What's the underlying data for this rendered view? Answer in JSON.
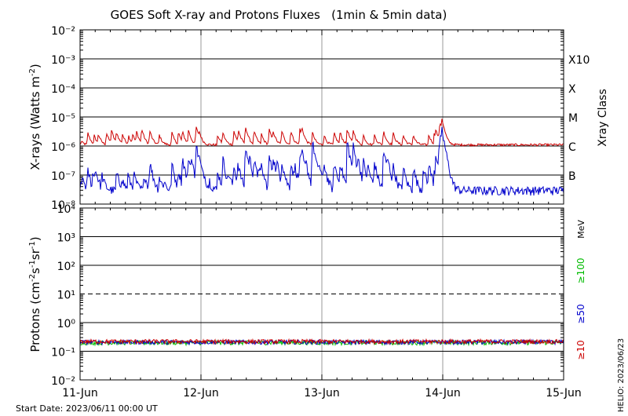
{
  "chart_data": [
    {
      "type": "line",
      "title": "GOES Soft X-ray and Protons Fluxes   (1min & 5min data)",
      "ylabel": "X-rays (Watts m^-2)",
      "right_label": "Xray Class",
      "y_scale": "log",
      "ylim": [
        1e-08,
        0.01
      ],
      "ytick_labels": [
        "10⁻⁸",
        "10⁻⁷",
        "10⁻⁶",
        "10⁻⁵",
        "10⁻⁴",
        "10⁻³",
        "10⁻²"
      ],
      "class_labels": [
        "B",
        "C",
        "M",
        "X",
        "X10"
      ],
      "class_thresholds": [
        1e-07,
        1e-06,
        1e-05,
        0.0001,
        0.001
      ],
      "grid": true,
      "series": [
        {
          "key": "long",
          "color": "#cc0000",
          "baseline": 1.1e-06,
          "peaks": [
            [
              0.2,
              1.5e-06
            ],
            [
              1.5,
              3e-06
            ],
            [
              2.8,
              2.2e-06
            ],
            [
              3.6,
              2.5e-06
            ],
            [
              5.2,
              3e-06
            ],
            [
              6.2,
              3.5e-06
            ],
            [
              7.2,
              3e-06
            ],
            [
              8.4,
              2.5e-06
            ],
            [
              9.6,
              2.3e-06
            ],
            [
              10.4,
              2.5e-06
            ],
            [
              11.2,
              3e-06
            ],
            [
              12.2,
              4e-06
            ],
            [
              13.8,
              3.5e-06
            ],
            [
              15.7,
              2.5e-06
            ],
            [
              18.2,
              3e-06
            ],
            [
              19.5,
              3e-06
            ],
            [
              20.3,
              3e-06
            ],
            [
              21.5,
              3.5e-06
            ],
            [
              23.0,
              5e-06
            ],
            [
              23.6,
              2.5e-06
            ],
            [
              27.3,
              2.5e-06
            ],
            [
              28.3,
              3e-06
            ],
            [
              30.5,
              3.5e-06
            ],
            [
              31.4,
              3.5e-06
            ],
            [
              32.8,
              5e-06
            ],
            [
              34.5,
              3.5e-06
            ],
            [
              36.0,
              2.5e-06
            ],
            [
              37.5,
              4e-06
            ],
            [
              38.3,
              3e-06
            ],
            [
              40.0,
              3.5e-06
            ],
            [
              41.8,
              3.5e-06
            ],
            [
              43.6,
              4e-06
            ],
            [
              44.0,
              3.5e-06
            ],
            [
              46.1,
              3e-06
            ],
            [
              48.4,
              2.5e-06
            ],
            [
              50.4,
              3e-06
            ],
            [
              51.6,
              3e-06
            ],
            [
              53.0,
              4e-06
            ],
            [
              54.2,
              3.5e-06
            ],
            [
              56.2,
              2.5e-06
            ],
            [
              58.4,
              2.5e-06
            ],
            [
              60.2,
              3.5e-06
            ],
            [
              62.1,
              3e-06
            ],
            [
              64.1,
              2.5e-06
            ],
            [
              66.1,
              2.5e-06
            ],
            [
              69.2,
              2.5e-06
            ],
            [
              70.3,
              2.8e-06
            ],
            [
              70.6,
              3e-06
            ],
            [
              71.3,
              4e-06
            ],
            [
              71.5,
              4e-06
            ],
            [
              71.8,
              7e-06
            ]
          ]
        },
        {
          "key": "short",
          "color": "#0000cc",
          "baseline": 3e-08,
          "peaks": [
            [
              0.2,
              8e-08
            ],
            [
              0.6,
              5e-08
            ],
            [
              1.5,
              1.5e-07
            ],
            [
              2.5,
              1e-07
            ],
            [
              2.9,
              1.5e-07
            ],
            [
              3.3,
              5e-08
            ],
            [
              4.3,
              1e-07
            ],
            [
              7.2,
              1.3e-07
            ],
            [
              8.2,
              8e-08
            ],
            [
              9.5,
              1e-07
            ],
            [
              10.6,
              1.2e-07
            ],
            [
              12.7,
              1.2e-07
            ],
            [
              13.8,
              3e-07
            ],
            [
              15.7,
              9e-08
            ],
            [
              16.6,
              6e-08
            ],
            [
              18.2,
              2.5e-07
            ],
            [
              19.5,
              1.5e-07
            ],
            [
              20.3,
              4e-07
            ],
            [
              21.5,
              4e-07
            ],
            [
              22.0,
              3e-07
            ],
            [
              23.0,
              1.2e-06
            ],
            [
              23.6,
              1.5e-07
            ],
            [
              24.5,
              8e-08
            ],
            [
              25.7,
              6e-08
            ],
            [
              27.3,
              1.5e-07
            ],
            [
              28.3,
              4e-07
            ],
            [
              29.5,
              1e-07
            ],
            [
              30.5,
              2e-07
            ],
            [
              31.3,
              2.5e-07
            ],
            [
              32.8,
              1e-06
            ],
            [
              33.6,
              3e-07
            ],
            [
              34.5,
              3e-07
            ],
            [
              35.4,
              2e-07
            ],
            [
              36.0,
              1.5e-07
            ],
            [
              37.5,
              5e-07
            ],
            [
              38.3,
              4e-07
            ],
            [
              39.1,
              2e-07
            ],
            [
              40.0,
              3e-07
            ],
            [
              41.8,
              3e-07
            ],
            [
              42.6,
              2e-07
            ],
            [
              43.6,
              5e-07
            ],
            [
              44.0,
              5e-07
            ],
            [
              44.8,
              2e-07
            ],
            [
              46.1,
              1.5e-06
            ],
            [
              47.4,
              2e-07
            ],
            [
              48.4,
              2.5e-07
            ],
            [
              50.4,
              3e-07
            ],
            [
              51.6,
              3e-07
            ],
            [
              53.0,
              1.5e-06
            ],
            [
              54.2,
              1e-06
            ],
            [
              55.1,
              3e-07
            ],
            [
              56.2,
              3e-07
            ],
            [
              57.1,
              2e-07
            ],
            [
              58.4,
              3e-07
            ],
            [
              60.2,
              8e-07
            ],
            [
              61.0,
              3e-07
            ],
            [
              62.1,
              2e-07
            ],
            [
              64.1,
              2e-07
            ],
            [
              66.1,
              2e-07
            ],
            [
              68.1,
              2e-07
            ],
            [
              69.2,
              2.5e-07
            ],
            [
              70.3,
              1.5e-07
            ],
            [
              70.6,
              5e-07
            ],
            [
              71.3,
              1.5e-06
            ],
            [
              71.5,
              8e-07
            ],
            [
              71.8,
              3e-06
            ]
          ]
        }
      ]
    },
    {
      "type": "line",
      "ylabel": "Protons (cm^-2 s^-1 sr^-1)",
      "right_label": "MeV",
      "y_scale": "log",
      "ylim": [
        0.01,
        10000
      ],
      "ytick_labels": [
        "10⁻²",
        "10⁻¹",
        "10⁰",
        "10¹",
        "10²",
        "10³",
        "10⁴"
      ],
      "threshold": 10,
      "grid": true,
      "energy_labels": [
        {
          "text": "≥100",
          "color": "#00bb00"
        },
        {
          "text": "≥50",
          "color": "#0000cc"
        },
        {
          "text": "≥10",
          "color": "#cc0000"
        }
      ],
      "series": [
        {
          "key": "p100",
          "color": "#00bb00",
          "level": 0.2
        },
        {
          "key": "p50",
          "color": "#0000cc",
          "level": 0.21
        },
        {
          "key": "p10",
          "color": "#cc0000",
          "level": 0.22
        }
      ]
    }
  ],
  "x_axis": {
    "tick_labels": [
      "11-Jun",
      "12-Jun",
      "13-Jun",
      "14-Jun",
      "15-Jun"
    ],
    "range_hours": [
      0,
      96
    ]
  },
  "footer": {
    "start_date": "Start Date: 2023/06/11 00:00 UT",
    "credit": "HELIO: 2023/06/23"
  }
}
